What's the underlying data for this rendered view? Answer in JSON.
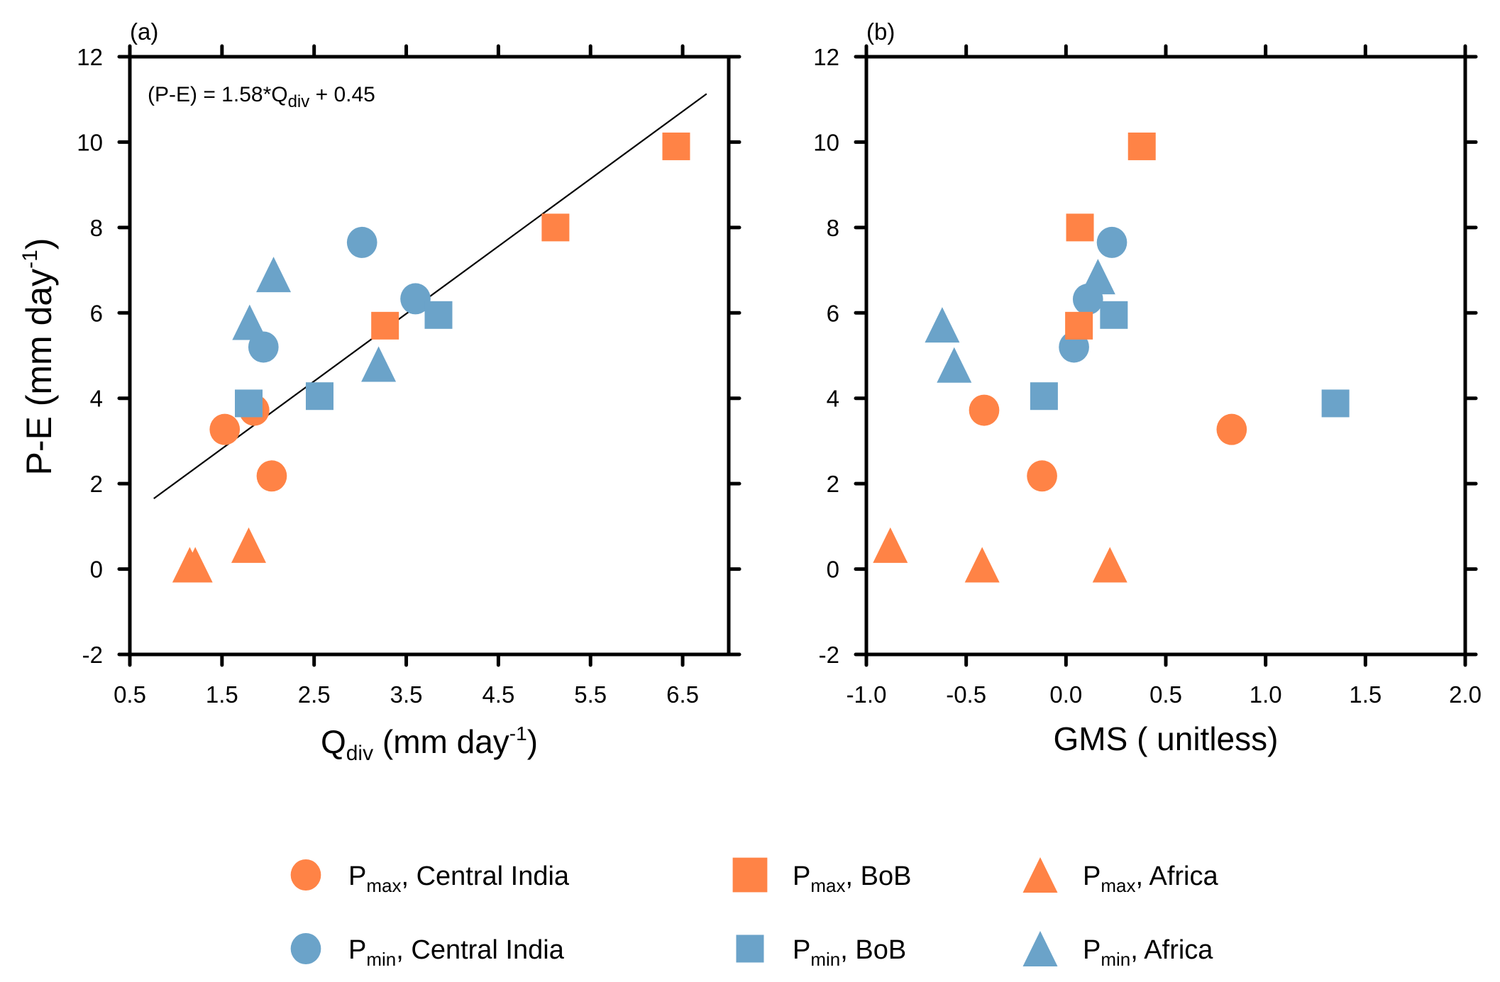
{
  "colors": {
    "pmax": "#FF8346",
    "pmin": "#6BA3C9",
    "axis": "#000000",
    "fit_line": "#000000"
  },
  "chart_data": [
    {
      "id": "a",
      "type": "scatter",
      "panel_label": "(a)",
      "title": "",
      "xlabel": {
        "main": "Q",
        "sub": "div",
        "unit_pre": " (mm day",
        "unit_sup": "-1",
        "unit_post": ")"
      },
      "ylabel": {
        "main": "P-E  (mm day",
        "sup": "-1",
        "post": ")"
      },
      "xlim": [
        0.5,
        7.0
      ],
      "ylim": [
        -2,
        12
      ],
      "xticks": [
        0.5,
        1.5,
        2.5,
        3.5,
        4.5,
        5.5,
        6.5
      ],
      "xtick_labels": [
        "0.5",
        "1.5",
        "2.5",
        "3.5",
        "4.5",
        "5.5",
        "6.5"
      ],
      "yticks": [
        -2,
        0,
        2,
        4,
        6,
        8,
        10,
        12
      ],
      "ytick_labels": [
        "-2",
        "0",
        "2",
        "4",
        "6",
        "8",
        "10",
        "12"
      ],
      "grid": false,
      "annotation": {
        "pre": "(P-E) = 1.58*Q",
        "sub": "div",
        "post": " + 0.45",
        "position": "top-left"
      },
      "fit_line": {
        "slope": 1.58,
        "intercept": 0.45,
        "x_range": [
          0.76,
          6.76
        ]
      },
      "series": [
        {
          "name": "Pmax, Central India",
          "marker": "circle",
          "color_key": "pmax",
          "points": [
            [
              1.53,
              3.27
            ],
            [
              1.85,
              3.72
            ],
            [
              2.04,
              2.18
            ]
          ]
        },
        {
          "name": "Pmin, Central India",
          "marker": "circle",
          "color_key": "pmin",
          "points": [
            [
              1.95,
              5.2
            ],
            [
              3.02,
              7.65
            ],
            [
              3.6,
              6.33
            ]
          ]
        },
        {
          "name": "Pmax, BoB",
          "marker": "square",
          "color_key": "pmax",
          "points": [
            [
              3.27,
              5.7
            ],
            [
              5.12,
              8.0
            ],
            [
              6.43,
              9.9
            ]
          ]
        },
        {
          "name": "Pmin, BoB",
          "marker": "square",
          "color_key": "pmin",
          "points": [
            [
              1.79,
              3.88
            ],
            [
              2.56,
              4.05
            ],
            [
              3.85,
              5.95
            ]
          ]
        },
        {
          "name": "Pmax, Africa",
          "marker": "triangle",
          "color_key": "pmax",
          "points": [
            [
              1.15,
              0.1
            ],
            [
              1.21,
              0.1
            ],
            [
              1.79,
              0.56
            ]
          ]
        },
        {
          "name": "Pmin, Africa",
          "marker": "triangle",
          "color_key": "pmin",
          "points": [
            [
              1.8,
              5.78
            ],
            [
              2.06,
              6.9
            ],
            [
              3.2,
              4.8
            ]
          ]
        }
      ]
    },
    {
      "id": "b",
      "type": "scatter",
      "panel_label": "(b)",
      "title": "",
      "xlabel": {
        "main": "GMS ( unitless)"
      },
      "ylabel": null,
      "xlim": [
        -1.0,
        2.0
      ],
      "ylim": [
        -2,
        12
      ],
      "xticks": [
        -1.0,
        -0.5,
        0.0,
        0.5,
        1.0,
        1.5,
        2.0
      ],
      "xtick_labels": [
        "-1.0",
        "-0.5",
        "0.0",
        "0.5",
        "1.0",
        "1.5",
        "2.0"
      ],
      "yticks": [
        -2,
        0,
        2,
        4,
        6,
        8,
        10,
        12
      ],
      "ytick_labels": [
        "-2",
        "0",
        "2",
        "4",
        "6",
        "8",
        "10",
        "12"
      ],
      "grid": false,
      "series": [
        {
          "name": "Pmax, Central India",
          "marker": "circle",
          "color_key": "pmax",
          "points": [
            [
              0.83,
              3.27
            ],
            [
              -0.41,
              3.72
            ],
            [
              -0.12,
              2.18
            ]
          ]
        },
        {
          "name": "Pmin, Central India",
          "marker": "circle",
          "color_key": "pmin",
          "points": [
            [
              0.04,
              5.2
            ],
            [
              0.23,
              7.65
            ],
            [
              0.11,
              6.32
            ]
          ]
        },
        {
          "name": "Pmax, BoB",
          "marker": "square",
          "color_key": "pmax",
          "points": [
            [
              0.065,
              5.7
            ],
            [
              0.07,
              8.0
            ],
            [
              0.38,
              9.9
            ]
          ]
        },
        {
          "name": "Pmin, BoB",
          "marker": "square",
          "color_key": "pmin",
          "points": [
            [
              1.35,
              3.88
            ],
            [
              -0.11,
              4.05
            ],
            [
              0.24,
              5.95
            ]
          ]
        },
        {
          "name": "Pmax, Africa",
          "marker": "triangle",
          "color_key": "pmax",
          "points": [
            [
              -0.42,
              0.1
            ],
            [
              -0.88,
              0.56
            ],
            [
              0.22,
              0.1
            ]
          ]
        },
        {
          "name": "Pmin, Africa",
          "marker": "triangle",
          "color_key": "pmin",
          "points": [
            [
              -0.62,
              5.72
            ],
            [
              -0.56,
              4.78
            ],
            [
              0.16,
              6.85
            ]
          ]
        }
      ]
    }
  ],
  "legend": {
    "placement": "bottom",
    "items": [
      {
        "marker": "circle",
        "color_key": "pmax",
        "p": "P",
        "sub": "max",
        "label": ", Central India"
      },
      {
        "marker": "square",
        "color_key": "pmax",
        "p": "P",
        "sub": "max",
        "label": ", BoB"
      },
      {
        "marker": "triangle",
        "color_key": "pmax",
        "p": "P",
        "sub": "max",
        "label": ", Africa"
      },
      {
        "marker": "circle",
        "color_key": "pmin",
        "p": "P",
        "sub": "min",
        "label": ", Central India"
      },
      {
        "marker": "square",
        "color_key": "pmin",
        "p": "P",
        "sub": "min",
        "label": ", BoB"
      },
      {
        "marker": "triangle",
        "color_key": "pmin",
        "p": "P",
        "sub": "min",
        "label": ", Africa"
      }
    ]
  }
}
